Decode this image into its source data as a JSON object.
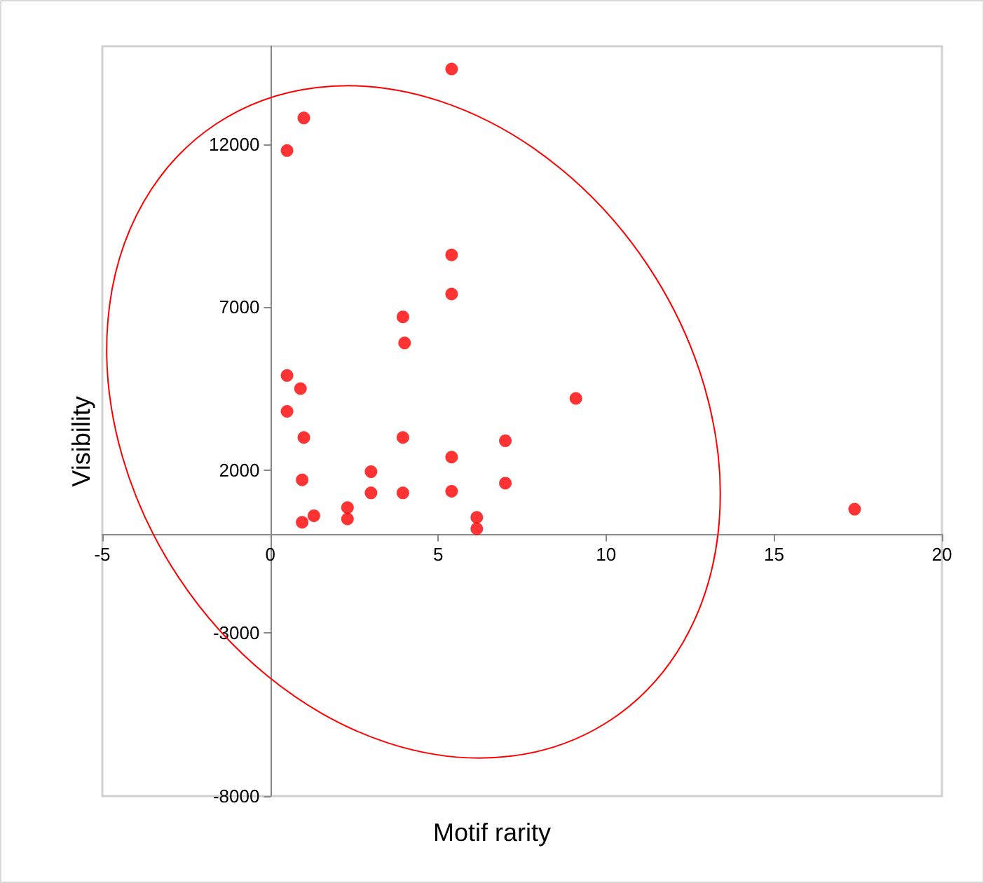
{
  "chart_data": {
    "type": "scatter",
    "xlabel": "Motif rarity",
    "ylabel": "Visibility",
    "x": [
      5.4,
      1.0,
      0.5,
      5.4,
      5.4,
      3.95,
      4.0,
      0.5,
      0.9,
      0.5,
      1.0,
      3.95,
      9.1,
      5.4,
      7.0,
      3.0,
      0.95,
      7.0,
      3.0,
      3.95,
      5.4,
      2.3,
      2.3,
      1.3,
      0.95,
      6.15,
      6.15,
      17.4
    ],
    "series": [
      {
        "color": "#ff0000",
        "values": [
          14300,
          12800,
          11800,
          8600,
          7400,
          6700,
          5900,
          4900,
          4500,
          3800,
          3000,
          3000,
          4200,
          2400,
          2900,
          1950,
          1700,
          1600,
          1300,
          1300,
          1350,
          850,
          500,
          600,
          400,
          550,
          200,
          800
        ]
      }
    ],
    "xlim": [
      -5,
      20
    ],
    "xticks": [
      -5,
      0,
      5,
      10,
      15,
      20
    ],
    "ylim": [
      -8000,
      15000
    ],
    "yticks": [
      -8000,
      -3000,
      2000,
      7000,
      12000
    ],
    "marker": "circle",
    "grid": false
  }
}
